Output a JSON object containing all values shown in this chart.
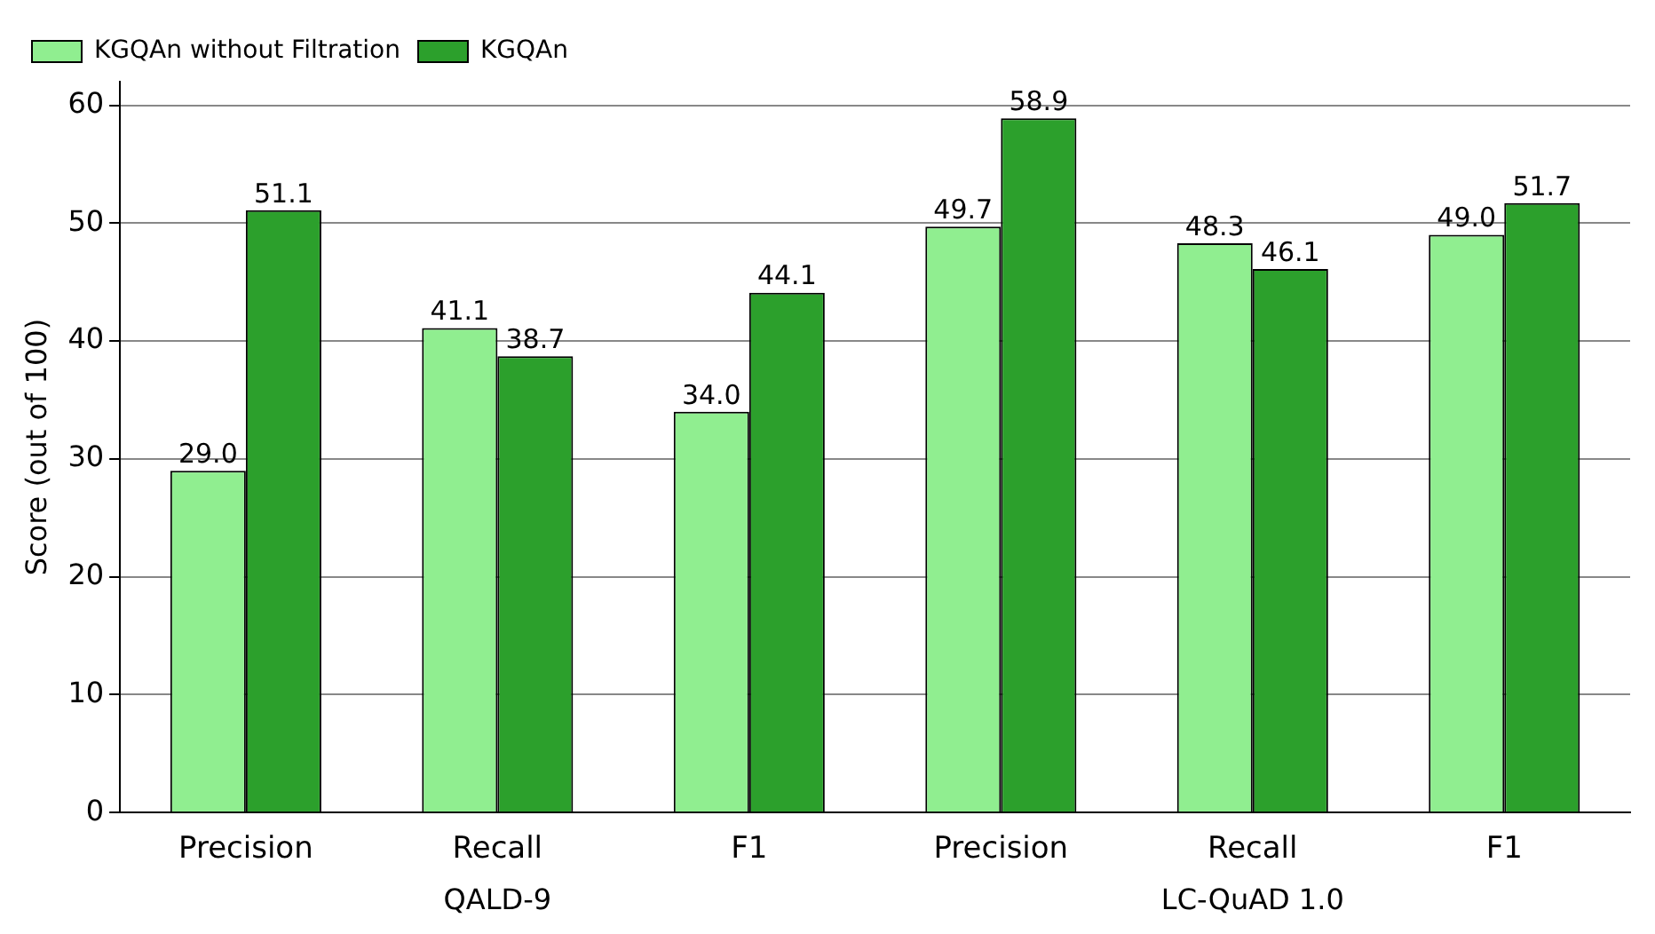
{
  "chart_data": {
    "type": "bar",
    "ylabel": "Score (out of 100)",
    "categories": [
      "Precision",
      "Recall",
      "F1",
      "Precision",
      "Recall",
      "F1"
    ],
    "series": [
      {
        "name": "KGQAn without Filtration",
        "color": "#90ee90",
        "values": [
          29.0,
          41.1,
          34.0,
          49.7,
          48.3,
          49.0
        ],
        "value_labels": [
          "29.0",
          "41.1",
          "34.0",
          "49.7",
          "48.3",
          "49.0"
        ]
      },
      {
        "name": "KGQAn",
        "color": "#2ca02c",
        "values": [
          51.1,
          38.7,
          44.1,
          58.9,
          46.1,
          51.7
        ],
        "value_labels": [
          "51.1",
          "38.7",
          "44.1",
          "58.9",
          "46.1",
          "51.7"
        ]
      }
    ],
    "ylim": [
      0,
      62
    ],
    "yticks": [
      0,
      10,
      20,
      30,
      40,
      50,
      60
    ],
    "grid": "y",
    "legend": "top left",
    "annotations": [
      "QALD-9",
      "LC-QuAD 1.0"
    ]
  }
}
